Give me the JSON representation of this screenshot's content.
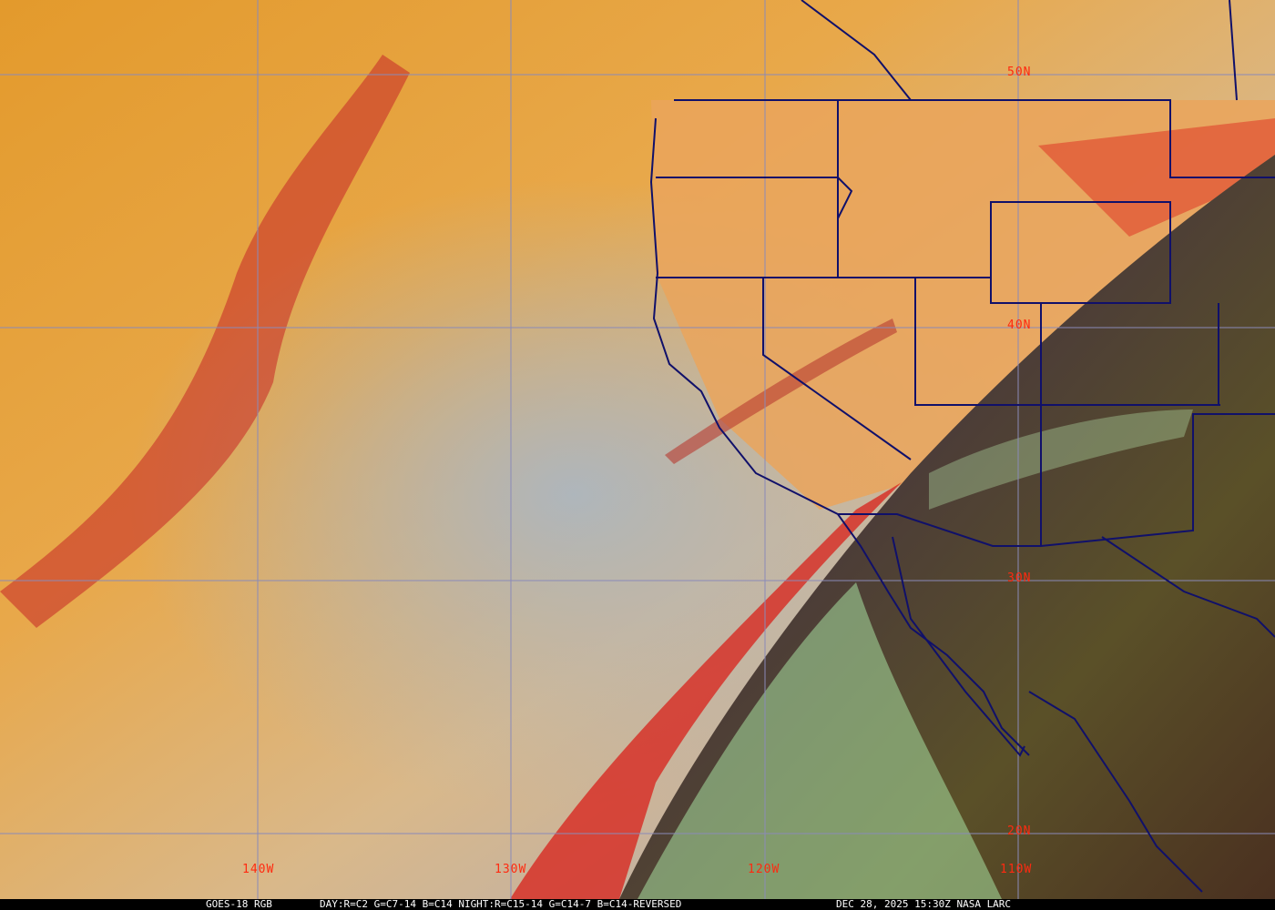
{
  "caption": {
    "product": "GOES-18 RGB",
    "recipe": "DAY:R=C2 G=C7-14 B=C14 NIGHT:R=C15-14 G=C14-7 B=C14-REVERSED",
    "timestamp": "DEC 28, 2025 15:30Z NASA LARC"
  },
  "grid_labels": {
    "lat": [
      "50N",
      "40N",
      "30N",
      "20N"
    ],
    "lon": [
      "140W",
      "130W",
      "120W",
      "110W"
    ]
  },
  "colors": {
    "grid": "#8a8ab8",
    "borders": "#10106a",
    "labels": "#ff2a10",
    "caption_bg": "#000000",
    "caption_text": "#ffffff"
  }
}
